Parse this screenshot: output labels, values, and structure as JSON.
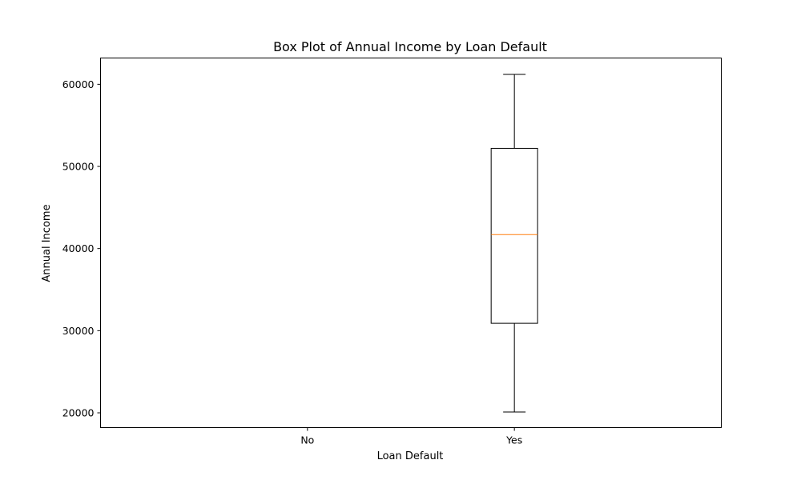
{
  "chart_data": {
    "type": "box",
    "title": "Box Plot of Annual Income by Loan Default",
    "xlabel": "Loan Default",
    "ylabel": "Annual Income",
    "categories": [
      "No",
      "Yes"
    ],
    "ylim": [
      18200,
      63200
    ],
    "yticks": [
      20000,
      30000,
      40000,
      50000,
      60000
    ],
    "boxes": [
      null,
      {
        "whisker_low": 20100,
        "q1": 30900,
        "median": 41700,
        "q3": 52200,
        "whisker_high": 61200
      }
    ],
    "box_color": "#000000",
    "median_color": "#ff7f0e",
    "grid": false
  }
}
